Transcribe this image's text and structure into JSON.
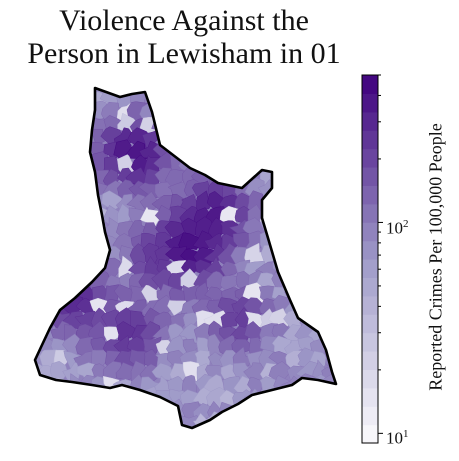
{
  "title_line1": "Violence Against the",
  "title_line2": "Person in Lewisham in 01",
  "colorbar": {
    "label": "Reported Crimes Per 100,000 People",
    "scale": "log",
    "range": [
      9,
      500
    ],
    "ticks": [
      {
        "value": 10,
        "base": "10",
        "exp": "1"
      },
      {
        "value": 100,
        "base": "10",
        "exp": "2"
      }
    ],
    "steps": 20,
    "colors": {
      "low": "#fcfbfd",
      "mid": "#9e9ac8",
      "high": "#3f007d"
    }
  },
  "map": {
    "borough": "Lewisham",
    "outline_color": "#000000",
    "hotspot_values": [
      420,
      380,
      360,
      300,
      260,
      240,
      220
    ]
  }
}
